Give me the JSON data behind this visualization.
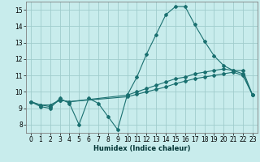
{
  "xlabel": "Humidex (Indice chaleur)",
  "ylabel": "",
  "bg_color": "#c8ecec",
  "grid_color": "#a0cccc",
  "line_color": "#1a7070",
  "xlim": [
    -0.5,
    23.5
  ],
  "ylim": [
    7.5,
    15.5
  ],
  "x_ticks": [
    0,
    1,
    2,
    3,
    4,
    5,
    6,
    7,
    8,
    9,
    10,
    11,
    12,
    13,
    14,
    15,
    16,
    17,
    18,
    19,
    20,
    21,
    22,
    23
  ],
  "y_ticks": [
    8,
    9,
    10,
    11,
    12,
    13,
    14,
    15
  ],
  "series1_x": [
    0,
    1,
    2,
    3,
    4,
    5,
    6,
    7,
    8,
    9,
    10,
    11,
    12,
    13,
    14,
    15,
    16,
    17,
    18,
    19,
    20,
    21,
    22,
    23
  ],
  "series1_y": [
    9.4,
    9.1,
    9.0,
    9.6,
    9.3,
    8.0,
    9.6,
    9.3,
    8.5,
    7.7,
    9.8,
    10.9,
    12.3,
    13.5,
    14.7,
    15.2,
    15.2,
    14.1,
    13.1,
    12.2,
    11.6,
    11.3,
    11.3,
    9.8
  ],
  "series2_x": [
    0,
    1,
    2,
    3,
    4,
    10,
    11,
    12,
    13,
    14,
    15,
    16,
    17,
    18,
    19,
    20,
    21,
    22,
    23
  ],
  "series2_y": [
    9.4,
    9.2,
    9.2,
    9.5,
    9.4,
    9.8,
    10.0,
    10.2,
    10.4,
    10.6,
    10.8,
    10.9,
    11.1,
    11.2,
    11.3,
    11.4,
    11.3,
    11.1,
    9.8
  ],
  "series3_x": [
    0,
    1,
    2,
    3,
    4,
    10,
    11,
    12,
    13,
    14,
    15,
    16,
    17,
    18,
    19,
    20,
    21,
    22,
    23
  ],
  "series3_y": [
    9.4,
    9.2,
    9.1,
    9.5,
    9.4,
    9.7,
    9.85,
    10.0,
    10.15,
    10.3,
    10.5,
    10.65,
    10.8,
    10.9,
    11.0,
    11.1,
    11.2,
    11.0,
    9.8
  ]
}
